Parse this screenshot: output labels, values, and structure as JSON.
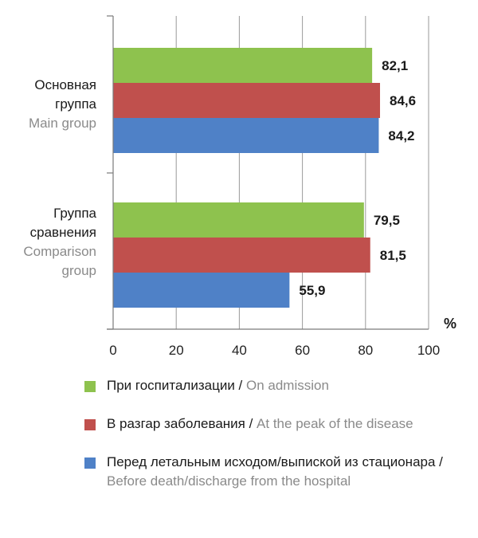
{
  "chart_data": {
    "type": "bar",
    "orientation": "horizontal",
    "categories": [
      {
        "ru_lines": [
          "Основная",
          "группа"
        ],
        "en_lines": [
          "Main group"
        ]
      },
      {
        "ru_lines": [
          "Группа",
          "сравнения"
        ],
        "en_lines": [
          "Comparison",
          "group"
        ]
      }
    ],
    "series": [
      {
        "ru": "При госпитализации",
        "en": "On admission",
        "color": "#8ec24e",
        "values": [
          82.1,
          79.5
        ],
        "labels": [
          "82,1",
          "79,5"
        ]
      },
      {
        "ru": "В разгар заболевания",
        "en": "At the peak of the disease",
        "color": "#c0504d",
        "values": [
          84.6,
          81.5
        ],
        "labels": [
          "84,6",
          "81,5"
        ]
      },
      {
        "ru": "Перед летальным исходом/выпиской из стационара",
        "en": "Before death/discharge from the hospital",
        "color": "#4f81c7",
        "values": [
          84.2,
          55.9
        ],
        "labels": [
          "84,2",
          "55,9"
        ]
      }
    ],
    "xlim": [
      0,
      100
    ],
    "xticks": [
      0,
      20,
      40,
      60,
      80,
      100
    ],
    "unit": "%",
    "grid": true,
    "legend_position": "bottom"
  },
  "legend": [
    {
      "ru": "При госпитализации",
      "sep": " / ",
      "en": "On admission",
      "color": "#8ec24e"
    },
    {
      "ru": "В разгар заболевания",
      "sep": " / ",
      "en": "At the peak of the disease",
      "color": "#c0504d"
    },
    {
      "ru": "Перед летальным исходом/выпиской из стационара",
      "sep": " / ",
      "en": "Before death/discharge from the hospital",
      "color": "#4f81c7"
    }
  ]
}
